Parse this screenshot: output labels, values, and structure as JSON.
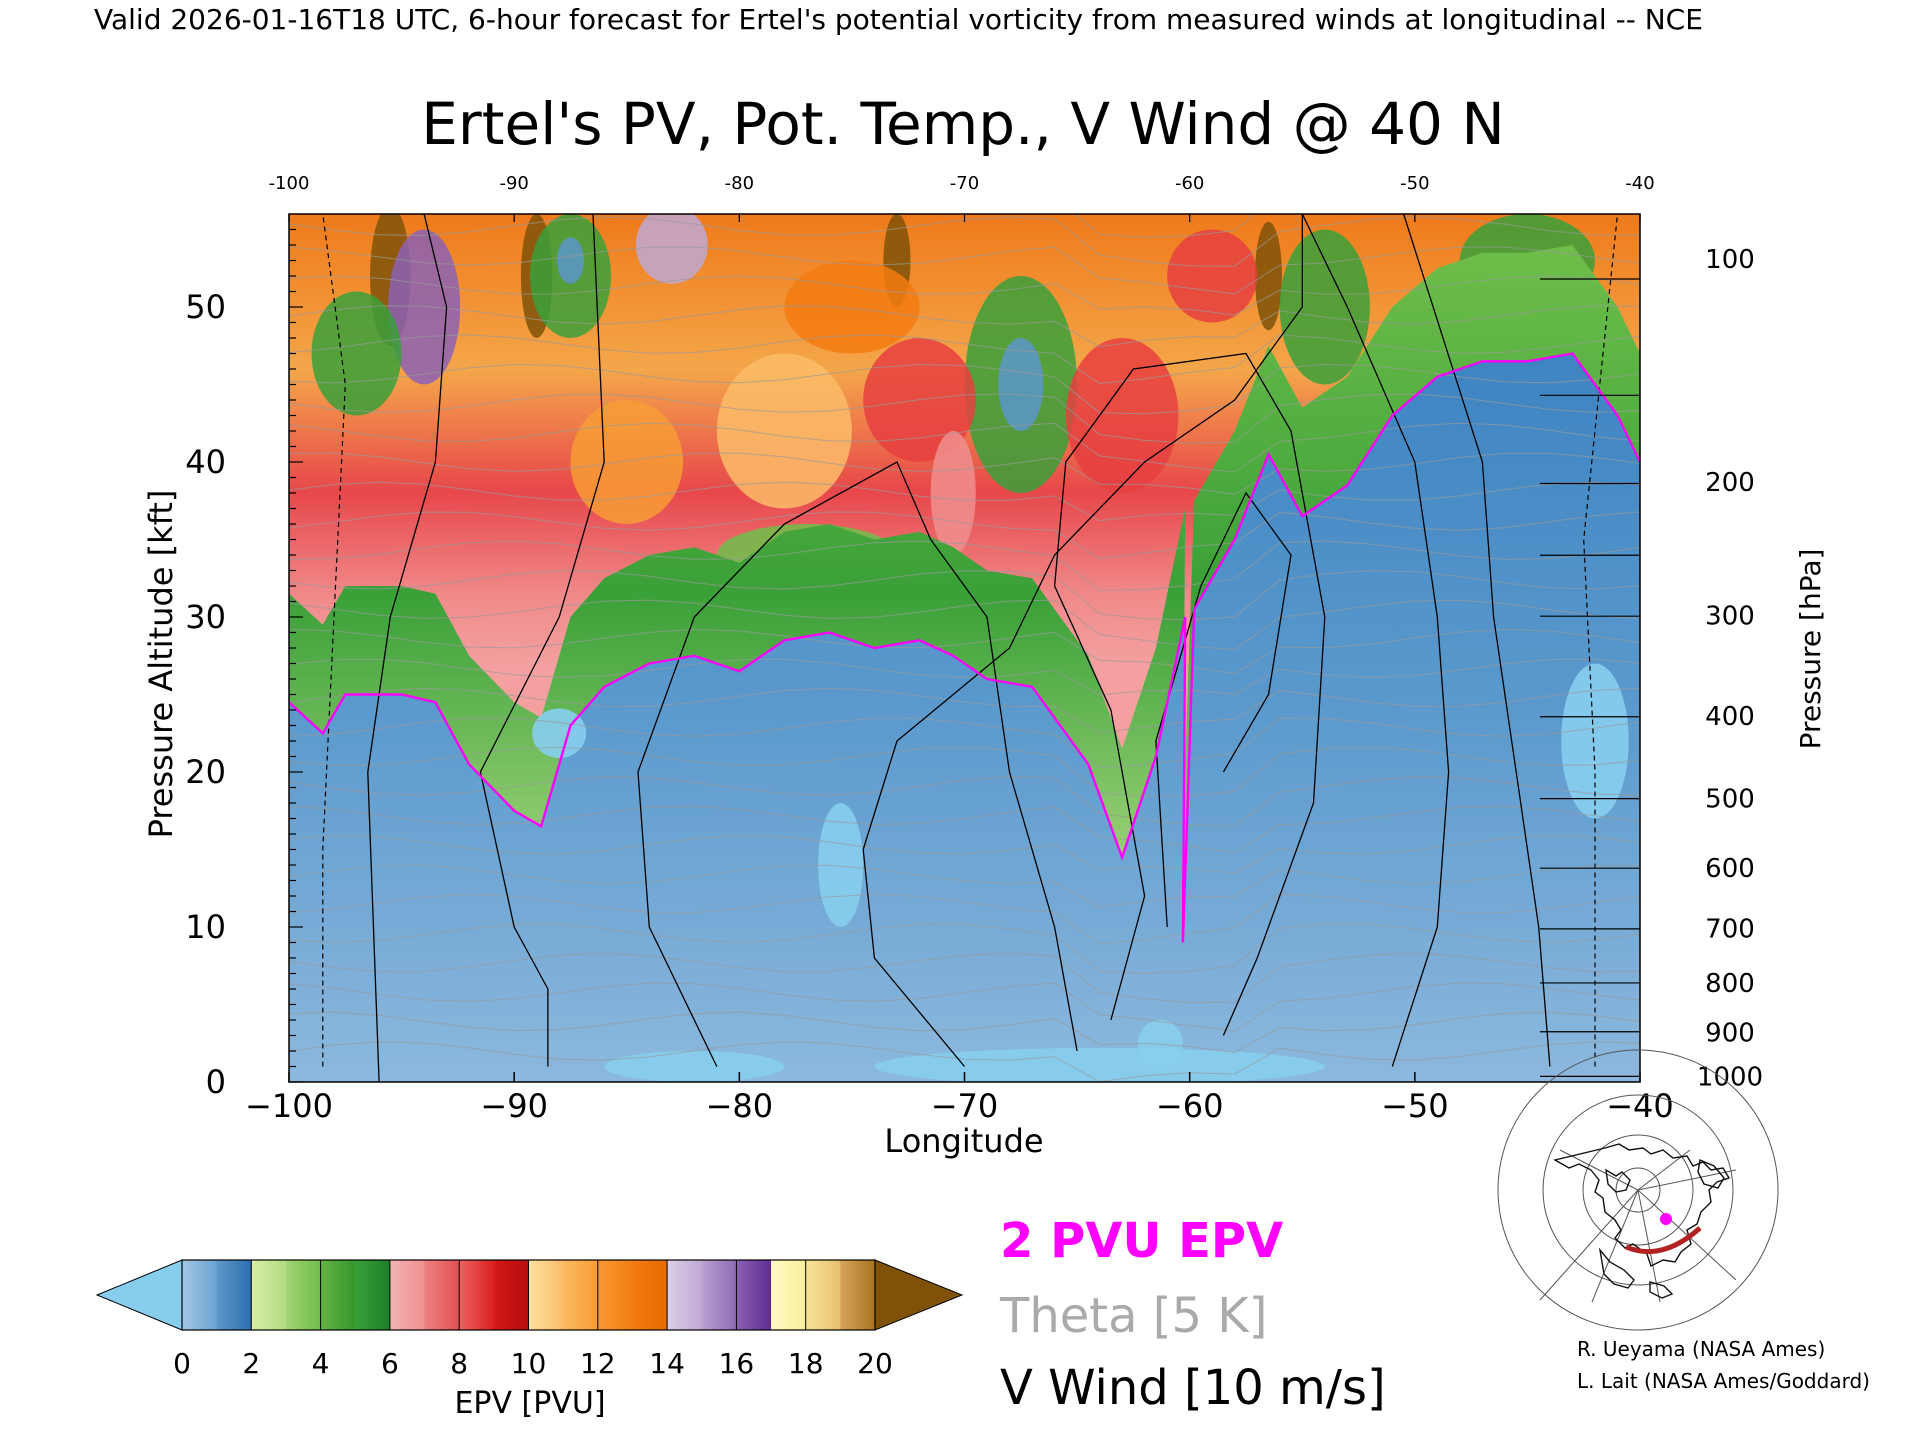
{
  "header": {
    "valid_line": "Valid 2026-01-16T18 UTC, 6-hour forecast for Ertel's potential vorticity from measured winds at longitudinal -- NCE",
    "title": "Ertel's PV, Pot. Temp., V Wind @ 40 N"
  },
  "chart_data": {
    "type": "heatmap",
    "title": "Ertel's PV, Pot. Temp., V Wind @ 40 N",
    "xlabel": "Longitude",
    "ylabel": "Pressure Altitude [kft]",
    "y2label": "Pressure [hPa]",
    "xlim": [
      -100,
      -40
    ],
    "ylim": [
      0,
      56
    ],
    "x_ticks": [
      -100,
      -90,
      -80,
      -70,
      -60,
      -50,
      -40
    ],
    "x_tick_labels": [
      "−100",
      "−90",
      "−80",
      "−70",
      "−60",
      "−50",
      "−40"
    ],
    "top_x_tick_labels": [
      "-100",
      "-90",
      "-80",
      "-70",
      "-60",
      "-50",
      "-40"
    ],
    "y_ticks": [
      0,
      10,
      20,
      30,
      40,
      50
    ],
    "pressure_ticks": [
      {
        "label": "100",
        "kft": 53.1
      },
      {
        "label": "200",
        "kft": 38.7
      },
      {
        "label": "300",
        "kft": 30.1
      },
      {
        "label": "400",
        "kft": 23.6
      },
      {
        "label": "500",
        "kft": 18.3
      },
      {
        "label": "600",
        "kft": 13.8
      },
      {
        "label": "700",
        "kft": 9.9
      },
      {
        "label": "800",
        "kft": 6.4
      },
      {
        "label": "900",
        "kft": 3.2
      },
      {
        "label": "1000",
        "kft": 0.36
      }
    ],
    "tropopause_2pvu": [
      [
        -100,
        24.5
      ],
      [
        -98.5,
        22.5
      ],
      [
        -97.5,
        25
      ],
      [
        -95,
        25
      ],
      [
        -93.5,
        24.5
      ],
      [
        -92,
        20.5
      ],
      [
        -90,
        17.5
      ],
      [
        -88.8,
        16.5
      ],
      [
        -87.5,
        23
      ],
      [
        -86,
        25.5
      ],
      [
        -84,
        27
      ],
      [
        -82,
        27.5
      ],
      [
        -80,
        26.5
      ],
      [
        -78,
        28.5
      ],
      [
        -76,
        29
      ],
      [
        -74,
        28
      ],
      [
        -72,
        28.5
      ],
      [
        -70.5,
        27.5
      ],
      [
        -69,
        26
      ],
      [
        -67,
        25.5
      ],
      [
        -64.5,
        20.5
      ],
      [
        -63,
        14.5
      ],
      [
        -61.5,
        21
      ],
      [
        -60.2,
        30
      ],
      [
        -60.3,
        9
      ],
      [
        -59.8,
        30.5
      ],
      [
        -58,
        35
      ],
      [
        -56.5,
        40.5
      ],
      [
        -55,
        36.5
      ],
      [
        -53,
        38.5
      ],
      [
        -51,
        43
      ],
      [
        -49,
        45.5
      ],
      [
        -47,
        46.5
      ],
      [
        -45,
        46.5
      ],
      [
        -43,
        47
      ],
      [
        -41,
        43
      ],
      [
        -40,
        40
      ]
    ],
    "colorbar": {
      "label": "EPV [PVU]",
      "ticks": [
        "0",
        "2",
        "4",
        "6",
        "8",
        "10",
        "12",
        "14",
        "16",
        "18",
        "20"
      ],
      "under_color": "#87ceee",
      "over_color": "#7f5208",
      "bins": [
        {
          "from": 0,
          "to": 1,
          "colors": [
            "#a3c6e2",
            "#6ba4d2"
          ]
        },
        {
          "from": 1,
          "to": 2,
          "colors": [
            "#5f97c8",
            "#2c6fb0"
          ]
        },
        {
          "from": 2,
          "to": 3,
          "colors": [
            "#d9efaa",
            "#b1dd80"
          ]
        },
        {
          "from": 3,
          "to": 4,
          "colors": [
            "#a4d674",
            "#6fbb4b"
          ]
        },
        {
          "from": 4,
          "to": 5,
          "colors": [
            "#65b443",
            "#34962c"
          ]
        },
        {
          "from": 5,
          "to": 6,
          "colors": [
            "#3aa039",
            "#1d7e26"
          ]
        },
        {
          "from": 6,
          "to": 7,
          "colors": [
            "#f4b4b4",
            "#f08f8f"
          ]
        },
        {
          "from": 7,
          "to": 8,
          "colors": [
            "#ee8080",
            "#e44f4f"
          ]
        },
        {
          "from": 8,
          "to": 9,
          "colors": [
            "#ee6262",
            "#d91f1f"
          ]
        },
        {
          "from": 9,
          "to": 10,
          "colors": [
            "#d61818",
            "#b30d0d"
          ]
        },
        {
          "from": 10,
          "to": 11,
          "colors": [
            "#fde0a0",
            "#fbbc68"
          ]
        },
        {
          "from": 11,
          "to": 12,
          "colors": [
            "#fcba60",
            "#f79c36"
          ]
        },
        {
          "from": 12,
          "to": 13,
          "colors": [
            "#f99a34",
            "#f17d12"
          ]
        },
        {
          "from": 13,
          "to": 14,
          "colors": [
            "#f37b10",
            "#e56b00"
          ]
        },
        {
          "from": 14,
          "to": 15,
          "colors": [
            "#dcd0e8",
            "#c0a8d4"
          ]
        },
        {
          "from": 15,
          "to": 16,
          "colors": [
            "#b8a0d0",
            "#8e68b4"
          ]
        },
        {
          "from": 16,
          "to": 17,
          "colors": [
            "#8c62b4",
            "#5c2c92"
          ]
        },
        {
          "from": 17,
          "to": 18,
          "colors": [
            "#fffbc4",
            "#f9ee9a"
          ]
        },
        {
          "from": 18,
          "to": 19,
          "colors": [
            "#f9e49a",
            "#e6c06e"
          ]
        },
        {
          "from": 19,
          "to": 20,
          "colors": [
            "#d8a45c",
            "#a67420"
          ]
        }
      ]
    }
  },
  "legend": {
    "pvu": "2 PVU EPV",
    "theta": "Theta [5 K]",
    "vwind": "V Wind [10 m/s]",
    "pvu_color": "#ff00ff",
    "theta_color": "#aaaaaa"
  },
  "credits": {
    "line1": "R. Ueyama (NASA Ames)",
    "line2": "L. Lait (NASA Ames/Goddard)"
  },
  "locator_map": {
    "cross_section_color": "#b22222",
    "marker_color": "#ff00ff"
  }
}
